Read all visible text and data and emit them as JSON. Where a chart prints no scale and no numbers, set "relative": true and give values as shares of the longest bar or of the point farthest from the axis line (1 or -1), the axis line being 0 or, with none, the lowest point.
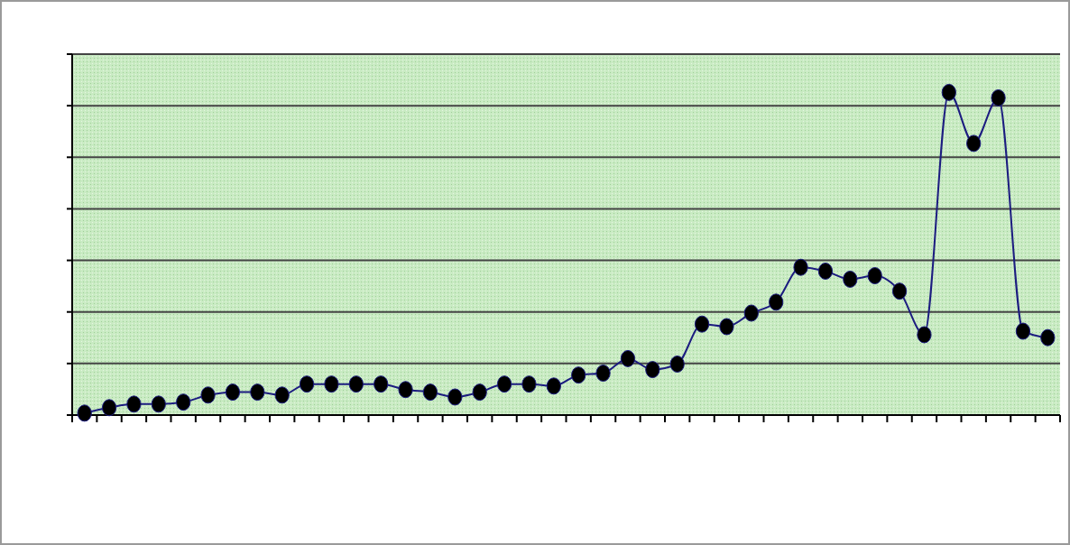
{
  "chart_data": {
    "type": "line",
    "relative": true,
    "grid": "y",
    "marker": "circle",
    "categories": [
      null,
      null,
      null,
      null,
      null,
      null,
      null,
      null,
      null,
      null,
      null,
      null,
      null,
      null,
      null,
      null,
      null,
      null,
      null,
      null,
      null,
      null,
      null,
      null,
      null,
      null,
      null,
      null,
      null,
      null,
      null,
      null,
      null,
      null,
      null,
      null,
      null,
      null,
      null,
      null
    ],
    "series": [
      {
        "color": "#1c1c80",
        "values": [
          0.006,
          0.023,
          0.034,
          0.034,
          0.04,
          0.062,
          0.071,
          0.071,
          0.062,
          0.096,
          0.096,
          0.096,
          0.096,
          0.079,
          0.071,
          0.056,
          0.071,
          0.096,
          0.096,
          0.09,
          0.124,
          0.13,
          0.175,
          0.141,
          0.158,
          0.282,
          0.274,
          0.316,
          0.35,
          0.458,
          0.446,
          0.421,
          0.432,
          0.384,
          0.249,
          1,
          0.842,
          0.983,
          0.26,
          0.24
        ]
      }
    ]
  }
}
